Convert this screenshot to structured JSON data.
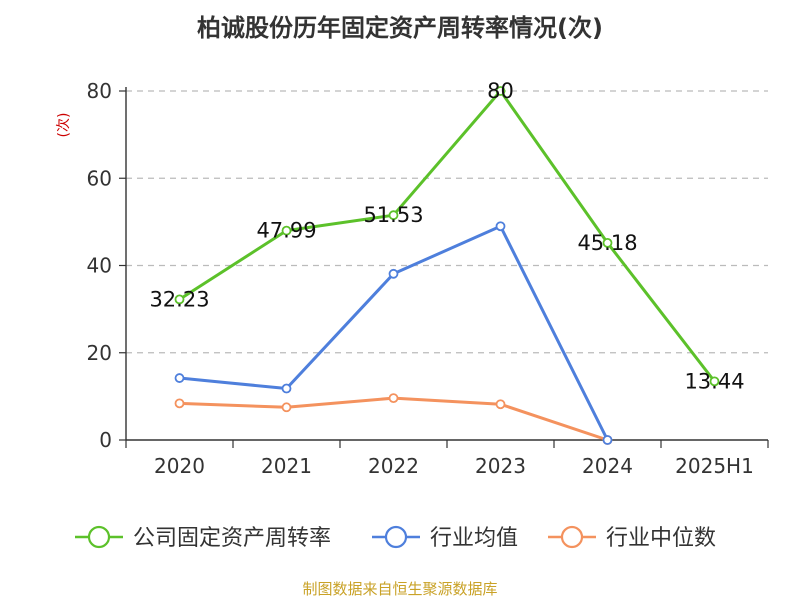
{
  "chart_data": {
    "type": "line",
    "title": "柏诚股份历年固定资产周转率情况(次)",
    "ylabel": "(次)",
    "categories": [
      "2020",
      "2021",
      "2022",
      "2023",
      "2024",
      "2025H1"
    ],
    "ylim": [
      0,
      80
    ],
    "yticks": [
      0,
      20,
      40,
      60,
      80
    ],
    "grid": true,
    "legend_position": "bottom",
    "series": [
      {
        "name": "公司固定资产周转率",
        "values": [
          32.23,
          47.99,
          51.53,
          80,
          45.18,
          13.44
        ],
        "labels": [
          "32.23",
          "47.99",
          "51.53",
          "80",
          "45.18",
          "13.44"
        ],
        "color": "#5cc12a"
      },
      {
        "name": "行业均值",
        "values": [
          14.2,
          11.8,
          38.1,
          49,
          0,
          null
        ],
        "color": "#4e7fdc"
      },
      {
        "name": "行业中位数",
        "values": [
          8.4,
          7.5,
          9.6,
          8.2,
          0,
          null
        ],
        "color": "#f4925e"
      }
    ],
    "source": "制图数据来自恒生聚源数据库"
  }
}
